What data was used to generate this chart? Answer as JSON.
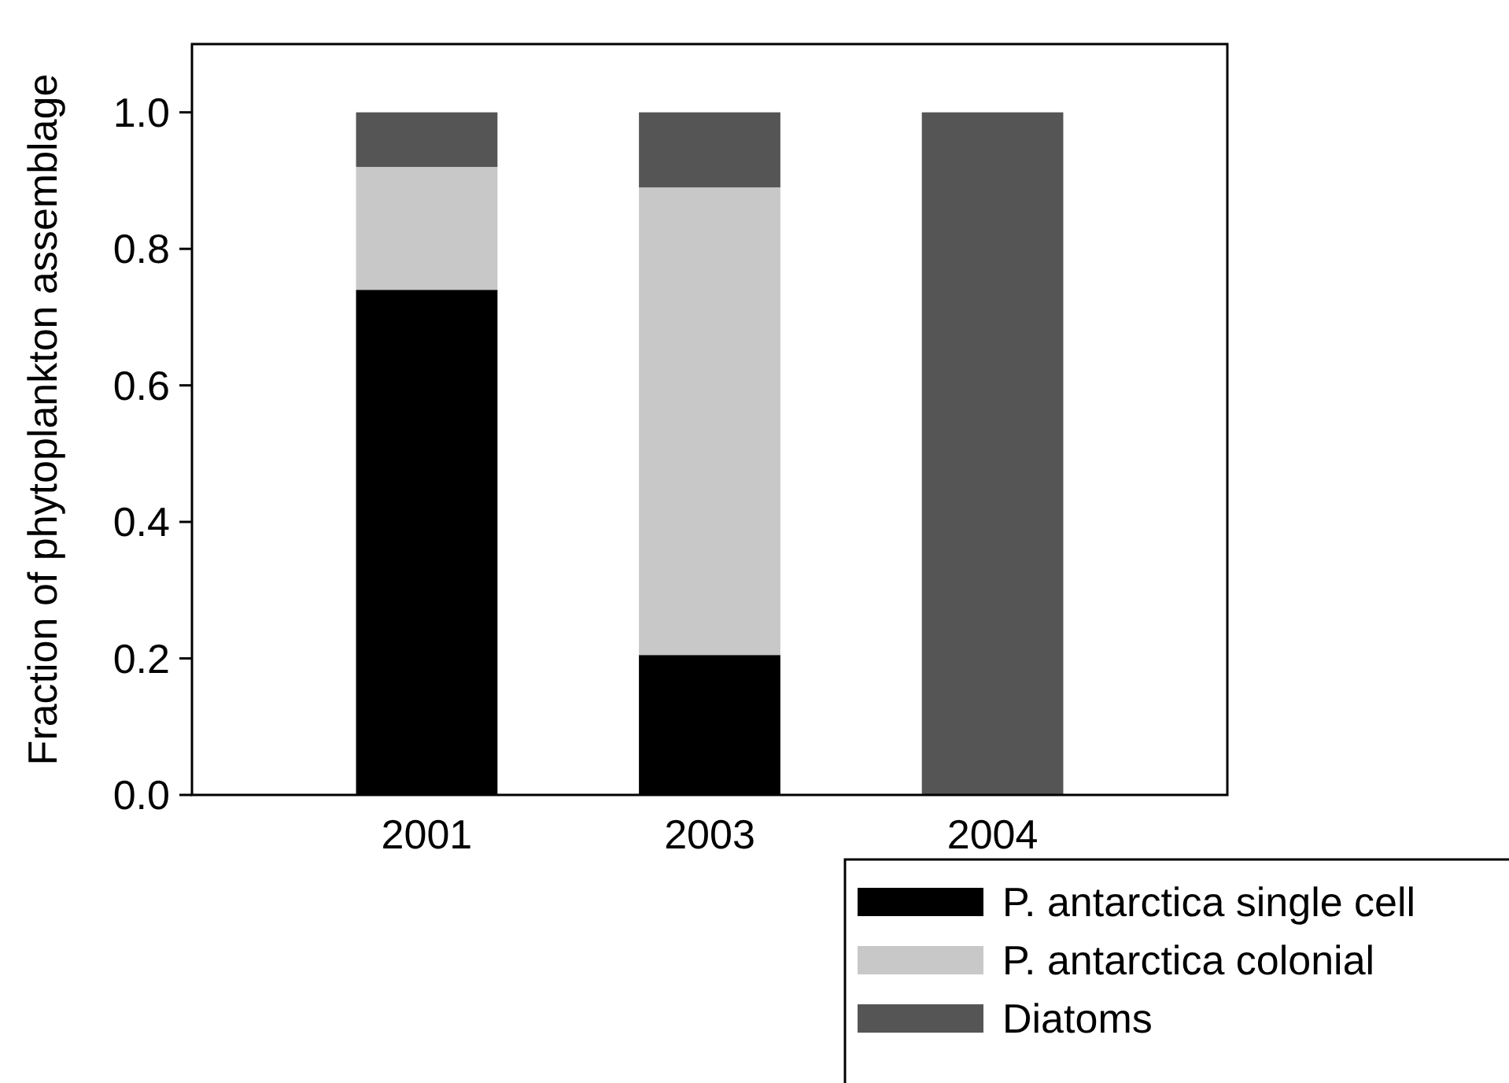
{
  "chart_data": {
    "type": "bar",
    "stacked": true,
    "ylabel": "Fraction of phytoplankton assemblage",
    "categories": [
      "2001",
      "2003",
      "2004"
    ],
    "series": [
      {
        "name": "P. antarctica single cell",
        "color": "#000000",
        "values": [
          0.74,
          0.205,
          0
        ]
      },
      {
        "name": "P. antarctica colonial",
        "color": "#c8c8c8",
        "values": [
          0.18,
          0.685,
          0
        ]
      },
      {
        "name": "Diatoms",
        "color": "#555555",
        "values": [
          0.08,
          0.11,
          1.0
        ]
      }
    ],
    "ylim": [
      0,
      1.1
    ],
    "yticks": [
      {
        "value": 0,
        "label": "0.0"
      },
      {
        "value": 0.2,
        "label": "0.2"
      },
      {
        "value": 0.4,
        "label": "0.4"
      },
      {
        "value": 0.6,
        "label": "0.6"
      },
      {
        "value": 0.8,
        "label": "0.8"
      },
      {
        "value": 1.0,
        "label": "1.0"
      }
    ],
    "grid": false,
    "legend": "bottom right"
  }
}
